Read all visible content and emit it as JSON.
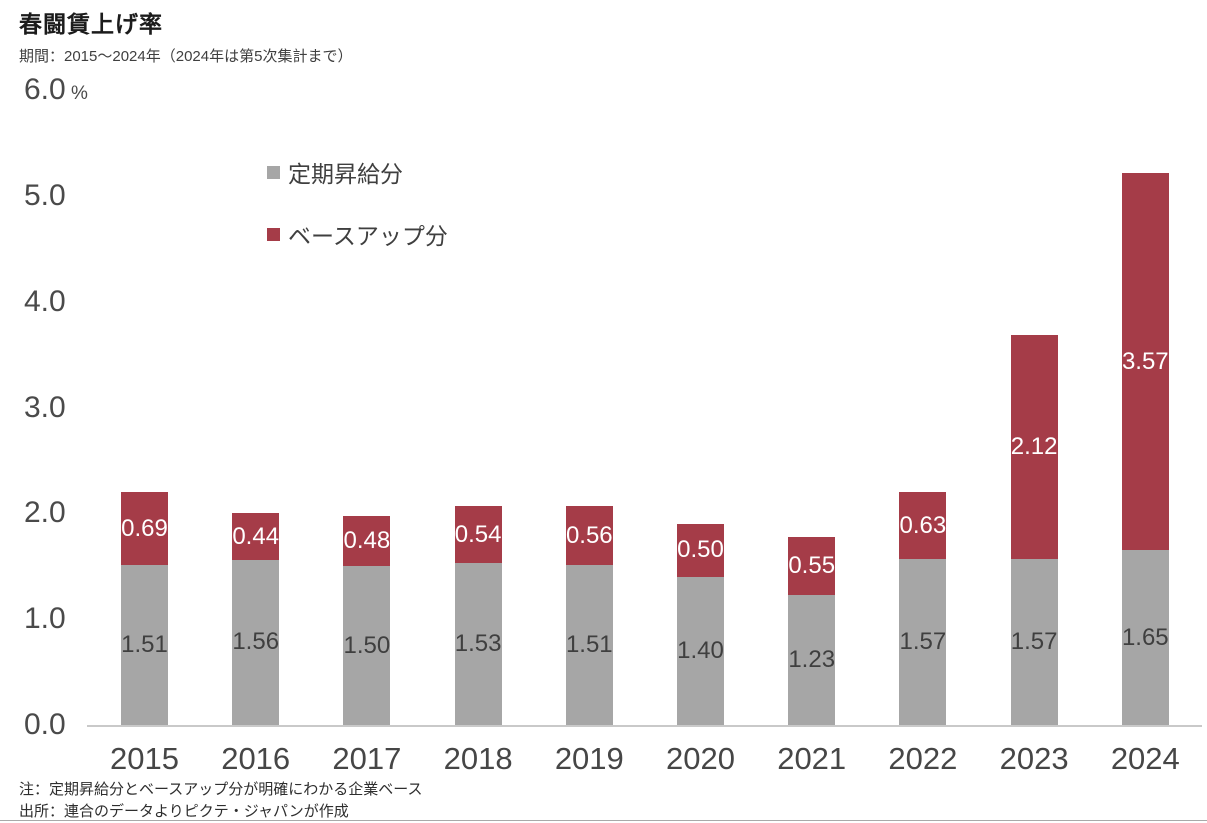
{
  "header": {
    "title": "春闘賃上げ率",
    "subtitle": "期間：2015～2024年（2024年は第5次集計まで）"
  },
  "chart_data": {
    "type": "bar",
    "stacked": true,
    "title": "春闘賃上げ率",
    "unit": "%",
    "categories": [
      "2015",
      "2016",
      "2017",
      "2018",
      "2019",
      "2020",
      "2021",
      "2022",
      "2023",
      "2024"
    ],
    "series": [
      {
        "name": "定期昇給分",
        "color": "#a6a6a6",
        "label_color": "#3f3f3f",
        "values": [
          1.51,
          1.56,
          1.5,
          1.53,
          1.51,
          1.4,
          1.23,
          1.57,
          1.57,
          1.65
        ]
      },
      {
        "name": "ベースアップ分",
        "color": "#a53c48",
        "label_color": "#ffffff",
        "values": [
          0.69,
          0.44,
          0.48,
          0.54,
          0.56,
          0.5,
          0.55,
          0.63,
          2.12,
          3.57
        ]
      }
    ],
    "ylim": [
      0,
      6.0
    ],
    "yticks": [
      "0.0",
      "1.0",
      "2.0",
      "3.0",
      "4.0",
      "5.0",
      "6.0"
    ],
    "grid": false,
    "legend_position": "upper-left-inside"
  },
  "footer": {
    "note": "注：定期昇給分とベースアップ分が明確にわかる企業ベース",
    "source": "出所：連合のデータよりピクテ・ジャパンが作成"
  }
}
